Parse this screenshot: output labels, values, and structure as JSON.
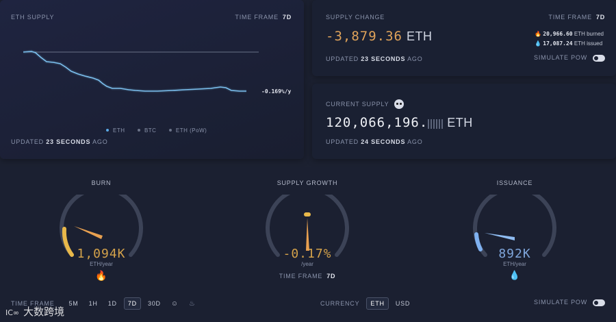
{
  "supply_panel": {
    "title": "ETH SUPPLY",
    "timeframe_label": "TIME FRAME",
    "timeframe_value": "7d",
    "rate_label": "-0.169%/y",
    "legend": [
      "ETH",
      "BTC",
      "ETH (PoW)"
    ],
    "legend_colors": [
      "#5aa9e6",
      "#6b7388",
      "#6b7388"
    ],
    "updated_prefix": "UPDATED",
    "updated_value": "23 SECONDS",
    "updated_suffix": "AGO"
  },
  "change_panel": {
    "title": "SUPPLY CHANGE",
    "timeframe_label": "TIME FRAME",
    "timeframe_value": "7d",
    "value": "-3,879.36",
    "unit": "ETH",
    "burned_value": "20,966.60",
    "burned_label": "ETH burned",
    "issued_value": "17,087.24",
    "issued_label": "ETH issued",
    "updated_prefix": "UPDATED",
    "updated_value": "23 SECONDS",
    "updated_suffix": "AGO",
    "simulate_label": "SIMULATE PoW"
  },
  "current_panel": {
    "title": "CURRENT SUPPLY",
    "value": "120,066,196.",
    "unit": "ETH",
    "updated_prefix": "UPDATED",
    "updated_value": "24 SECONDS",
    "updated_suffix": "AGO"
  },
  "gauges": {
    "burn": {
      "title": "BURN",
      "value": "1,094K",
      "unit": "ETH/year",
      "color": "#e8b84a"
    },
    "growth": {
      "title": "SUPPLY GROWTH",
      "value": "-0.17%",
      "unit": "/year",
      "color": "#e8a050",
      "timeframe_label": "TIME FRAME",
      "timeframe_value": "7d"
    },
    "issuance": {
      "title": "ISSUANCE",
      "value": "892K",
      "unit": "ETH/year",
      "color": "#7fb1f0"
    }
  },
  "controls": {
    "timeframe_label": "TIME FRAME",
    "timeframes": [
      "5m",
      "1h",
      "1d",
      "7d",
      "30d"
    ],
    "active_timeframe": "7d",
    "currency_label": "CURRENCY",
    "currencies": [
      "ETH",
      "USD"
    ],
    "active_currency": "ETH",
    "simulate_label": "SIMULATE PoW"
  },
  "watermark": "大数跨境"
}
